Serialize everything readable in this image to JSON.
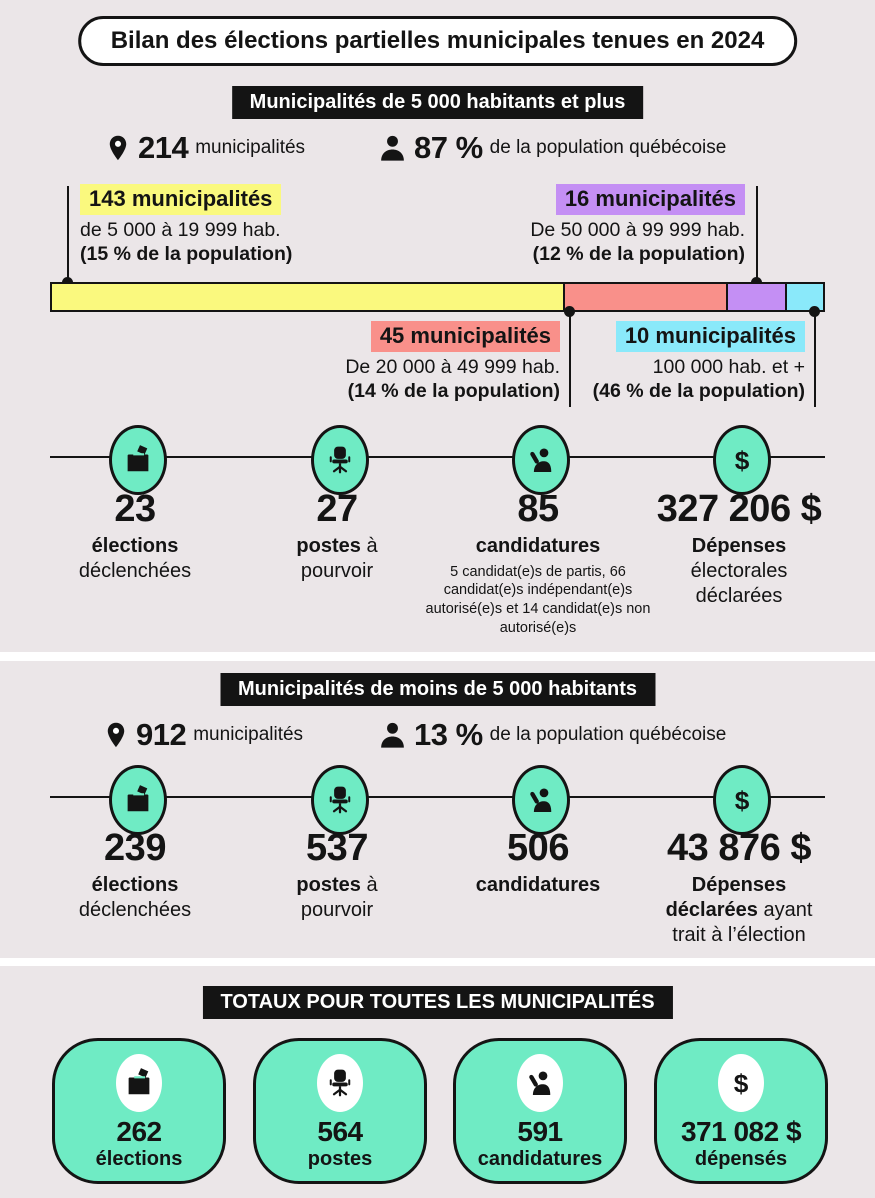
{
  "page": {
    "title": "Bilan des élections partielles municipales tenues en 2024"
  },
  "colors": {
    "panel_bg": "#EBE6E8",
    "mint": "#6FEBC4",
    "ink": "#141414",
    "yellow": "#FAF97E",
    "salmon": "#F9908A",
    "purple": "#C48FF4",
    "cyan": "#8AE9FA"
  },
  "section_large": {
    "header": "Municipalités de 5 000 habitants et plus",
    "muni_count": "214",
    "muni_label": "municipalités",
    "pop_pct": "87 %",
    "pop_label": "de la population québécoise",
    "bar_labels": [
      {
        "count": "143 municipalités",
        "range": "de 5 000 à 19 999 hab.",
        "pop": "(15 % de la population)"
      },
      {
        "count": "45 municipalités",
        "range": "De 20 000 à 49 999 hab.",
        "pop": "(14 % de la population)"
      },
      {
        "count": "16 municipalités",
        "range": "De 50 000 à 99 999 hab.",
        "pop": "(12 % de la population)"
      },
      {
        "count": "10 municipalités",
        "range": "100 000 hab. et +",
        "pop": "(46 % de la population)"
      }
    ],
    "stats": [
      {
        "value": "23",
        "bold": "élections",
        "rest": "déclenchées"
      },
      {
        "value": "27",
        "bold": "postes",
        "rest": "à pourvoir"
      },
      {
        "value": "85",
        "bold": "candidatures",
        "rest": "",
        "note": "5 candidat(e)s de partis, 66 candidat(e)s indépendant(e)s autorisé(e)s et 14 candidat(e)s non autorisé(e)s"
      },
      {
        "value": "327 206 $",
        "bold": "Dépenses",
        "rest": "électorales déclarées"
      }
    ]
  },
  "section_small": {
    "header": "Municipalités de moins de 5 000 habitants",
    "muni_count": "912",
    "muni_label": "municipalités",
    "pop_pct": "13 %",
    "pop_label": "de la population québécoise",
    "stats": [
      {
        "value": "239",
        "bold": "élections",
        "rest": "déclenchées"
      },
      {
        "value": "537",
        "bold": "postes",
        "rest": "à pourvoir"
      },
      {
        "value": "506",
        "bold": "candidatures",
        "rest": ""
      },
      {
        "value": "43 876 $",
        "bold": "Dépenses déclarées",
        "rest": "ayant trait à l’élection"
      }
    ]
  },
  "section_total": {
    "header": "TOTAUX POUR TOUTES LES MUNICIPALITÉS",
    "cards": [
      {
        "value": "262",
        "label": "élections"
      },
      {
        "value": "564",
        "label": "postes"
      },
      {
        "value": "591",
        "label": "candidatures"
      },
      {
        "value": "371 082 $",
        "label": "dépensés"
      }
    ]
  },
  "chart_data": {
    "type": "bar",
    "subtype": "proportional-stacked-horizontal",
    "title": "Répartition des 214 municipalités de 5 000 habitants et plus",
    "categories": [
      "de 5 000 à 19 999 hab.",
      "De 20 000 à 49 999 hab.",
      "De 50 000 à 99 999 hab.",
      "100 000 hab. et +"
    ],
    "values": [
      143,
      45,
      16,
      10
    ],
    "population_pct": [
      15,
      14,
      12,
      46
    ],
    "colors": [
      "#FAF97E",
      "#F9908A",
      "#C48FF4",
      "#8AE9FA"
    ],
    "total": 214,
    "grid": false,
    "legend_position": "callout-labels"
  }
}
